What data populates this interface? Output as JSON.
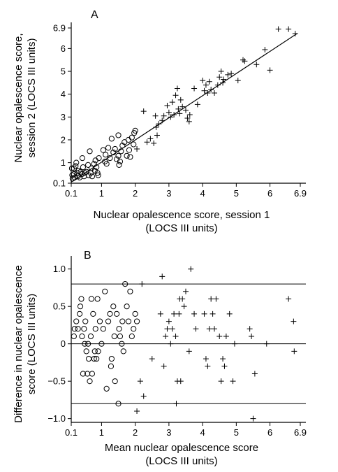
{
  "chart_data": [
    {
      "panel": "A",
      "type": "scatter",
      "xlabel_lines": [
        "Nuclear opalescence score, session 1",
        "(LOCS III units)"
      ],
      "ylabel_lines": [
        "Nuclear opalescence score,",
        "session 2 (LOCS III units)"
      ],
      "xlim": [
        0.1,
        6.9
      ],
      "ylim": [
        0.1,
        6.9
      ],
      "xticks": [
        0.1,
        1,
        2,
        3,
        4,
        5,
        6,
        6.9
      ],
      "yticks": [
        0.1,
        1,
        2,
        3,
        4,
        5,
        6,
        6.9
      ],
      "fit_line": {
        "x": [
          0.1,
          6.8
        ],
        "y": [
          0.15,
          6.65
        ]
      },
      "series": [
        {
          "marker": "circle",
          "points": [
            [
              0.12,
              0.75
            ],
            [
              0.13,
              0.45
            ],
            [
              0.14,
              0.3
            ],
            [
              0.18,
              0.75
            ],
            [
              0.18,
              0.5
            ],
            [
              0.2,
              0.35
            ],
            [
              0.23,
              0.85
            ],
            [
              0.25,
              1.0
            ],
            [
              0.28,
              0.55
            ],
            [
              0.3,
              0.4
            ],
            [
              0.32,
              0.65
            ],
            [
              0.35,
              0.35
            ],
            [
              0.38,
              0.6
            ],
            [
              0.42,
              0.5
            ],
            [
              0.43,
              1.2
            ],
            [
              0.45,
              0.8
            ],
            [
              0.48,
              0.4
            ],
            [
              0.5,
              0.55
            ],
            [
              0.55,
              0.6
            ],
            [
              0.6,
              0.9
            ],
            [
              0.62,
              0.45
            ],
            [
              0.65,
              1.5
            ],
            [
              0.68,
              0.55
            ],
            [
              0.7,
              0.75
            ],
            [
              0.72,
              0.4
            ],
            [
              0.78,
              0.95
            ],
            [
              0.8,
              0.65
            ],
            [
              0.82,
              1.1
            ],
            [
              0.85,
              0.8
            ],
            [
              0.88,
              0.55
            ],
            [
              0.9,
              0.45
            ],
            [
              0.92,
              1.2
            ],
            [
              1.05,
              1.55
            ],
            [
              1.1,
              1.05
            ],
            [
              1.12,
              1.35
            ],
            [
              1.15,
              0.95
            ],
            [
              1.2,
              1.65
            ],
            [
              1.25,
              1.2
            ],
            [
              1.3,
              2.05
            ],
            [
              1.35,
              1.45
            ],
            [
              1.4,
              1.6
            ],
            [
              1.45,
              1.15
            ],
            [
              1.5,
              1.3
            ],
            [
              1.5,
              2.2
            ],
            [
              1.52,
              0.9
            ],
            [
              1.55,
              1.05
            ],
            [
              1.58,
              1.5
            ],
            [
              1.62,
              1.75
            ],
            [
              1.68,
              1.9
            ],
            [
              1.75,
              1.3
            ],
            [
              1.8,
              2.0
            ],
            [
              1.82,
              1.55
            ],
            [
              1.85,
              1.25
            ],
            [
              1.9,
              2.1
            ],
            [
              1.95,
              1.8
            ],
            [
              1.97,
              2.3
            ],
            [
              2.0,
              2.4
            ]
          ]
        },
        {
          "marker": "plus",
          "points": [
            [
              2.05,
              1.6
            ],
            [
              2.25,
              3.25
            ],
            [
              2.35,
              1.9
            ],
            [
              2.45,
              2.05
            ],
            [
              2.55,
              1.85
            ],
            [
              2.6,
              3.05
            ],
            [
              2.62,
              2.55
            ],
            [
              2.65,
              2.2
            ],
            [
              2.7,
              2.7
            ],
            [
              2.8,
              2.85
            ],
            [
              2.85,
              3.05
            ],
            [
              2.95,
              3.5
            ],
            [
              3.0,
              3.2
            ],
            [
              3.05,
              3.0
            ],
            [
              3.1,
              3.65
            ],
            [
              3.15,
              3.1
            ],
            [
              3.2,
              3.95
            ],
            [
              3.25,
              4.25
            ],
            [
              3.28,
              3.35
            ],
            [
              3.32,
              3.15
            ],
            [
              3.35,
              3.75
            ],
            [
              3.4,
              3.45
            ],
            [
              3.5,
              3.3
            ],
            [
              3.55,
              2.95
            ],
            [
              3.6,
              2.8
            ],
            [
              3.62,
              3.1
            ],
            [
              3.75,
              4.25
            ],
            [
              3.85,
              3.55
            ],
            [
              4.0,
              4.6
            ],
            [
              4.05,
              4.15
            ],
            [
              4.1,
              4.4
            ],
            [
              4.15,
              4.05
            ],
            [
              4.2,
              4.55
            ],
            [
              4.25,
              4.2
            ],
            [
              4.35,
              4.05
            ],
            [
              4.45,
              4.4
            ],
            [
              4.5,
              4.75
            ],
            [
              4.55,
              5.0
            ],
            [
              4.6,
              4.5
            ],
            [
              4.62,
              4.65
            ],
            [
              4.75,
              4.85
            ],
            [
              4.85,
              4.9
            ],
            [
              5.05,
              4.6
            ],
            [
              5.2,
              5.5
            ],
            [
              5.25,
              5.45
            ],
            [
              5.6,
              5.3
            ],
            [
              5.85,
              5.95
            ],
            [
              6.0,
              5.05
            ],
            [
              6.25,
              6.85
            ],
            [
              6.55,
              6.85
            ],
            [
              6.75,
              6.65
            ]
          ]
        }
      ]
    },
    {
      "panel": "B",
      "type": "scatter",
      "xlabel_lines": [
        "Mean nuclear opalescence score",
        "(LOCS III units)"
      ],
      "ylabel_lines": [
        "Difference in nuclear opalescence",
        "score (LOCS III units)"
      ],
      "xlim": [
        0.1,
        6.9
      ],
      "ylim": [
        -1.05,
        1.1
      ],
      "xticks": [
        0.1,
        1,
        2,
        3,
        4,
        5,
        6,
        6.9
      ],
      "yticks": [
        -1.0,
        -0.5,
        0,
        0.5,
        1.0
      ],
      "ytick_labels": [
        "−1.0",
        "−0.5",
        "0",
        "0.5",
        "1.0"
      ],
      "reference_lines": [
        0.8,
        0,
        -0.8
      ],
      "series": [
        {
          "marker": "circle",
          "points": [
            [
              0.18,
              0.1
            ],
            [
              0.2,
              0.2
            ],
            [
              0.25,
              0.3
            ],
            [
              0.3,
              0.2
            ],
            [
              0.35,
              0.4
            ],
            [
              0.37,
              0.5
            ],
            [
              0.4,
              0.6
            ],
            [
              0.42,
              0.1
            ],
            [
              0.45,
              -0.4
            ],
            [
              0.48,
              0.2
            ],
            [
              0.5,
              0.0
            ],
            [
              0.52,
              0.3
            ],
            [
              0.55,
              -0.1
            ],
            [
              0.58,
              -0.4
            ],
            [
              0.6,
              0.0
            ],
            [
              0.62,
              -0.2
            ],
            [
              0.65,
              -0.5
            ],
            [
              0.68,
              0.1
            ],
            [
              0.7,
              0.6
            ],
            [
              0.72,
              -0.4
            ],
            [
              0.75,
              0.4
            ],
            [
              0.78,
              -0.2
            ],
            [
              0.8,
              -0.1
            ],
            [
              0.82,
              0.2
            ],
            [
              0.85,
              -0.2
            ],
            [
              0.88,
              0.6
            ],
            [
              0.9,
              -0.1
            ],
            [
              0.95,
              0.3
            ],
            [
              1.0,
              0.0
            ],
            [
              1.05,
              0.2
            ],
            [
              1.1,
              0.7
            ],
            [
              1.15,
              -0.6
            ],
            [
              1.2,
              0.3
            ],
            [
              1.25,
              0.4
            ],
            [
              1.28,
              -0.3
            ],
            [
              1.3,
              -0.2
            ],
            [
              1.35,
              0.5
            ],
            [
              1.38,
              0.1
            ],
            [
              1.4,
              -0.5
            ],
            [
              1.45,
              0.4
            ],
            [
              1.5,
              -0.8
            ],
            [
              1.52,
              0.2
            ],
            [
              1.55,
              0.1
            ],
            [
              1.6,
              0.0
            ],
            [
              1.62,
              0.3
            ],
            [
              1.65,
              -0.1
            ],
            [
              1.7,
              0.8
            ],
            [
              1.75,
              0.5
            ],
            [
              1.8,
              0.3
            ],
            [
              1.85,
              0.7
            ],
            [
              1.9,
              0.1
            ],
            [
              1.95,
              0.2
            ],
            [
              2.0,
              0.4
            ],
            [
              2.05,
              0.3
            ]
          ]
        },
        {
          "marker": "plus",
          "points": [
            [
              2.05,
              -0.9
            ],
            [
              2.15,
              -0.5
            ],
            [
              2.2,
              0.8
            ],
            [
              2.25,
              -0.7
            ],
            [
              2.5,
              -0.2
            ],
            [
              2.75,
              0.4
            ],
            [
              2.8,
              0.9
            ],
            [
              2.85,
              -0.3
            ],
            [
              2.9,
              0.1
            ],
            [
              2.95,
              0.2
            ],
            [
              3.0,
              0.3
            ],
            [
              3.05,
              0.0
            ],
            [
              3.1,
              0.2
            ],
            [
              3.15,
              0.4
            ],
            [
              3.2,
              0.1
            ],
            [
              3.22,
              -0.8
            ],
            [
              3.25,
              -0.5
            ],
            [
              3.3,
              0.4
            ],
            [
              3.32,
              0.6
            ],
            [
              3.35,
              -0.5
            ],
            [
              3.4,
              0.6
            ],
            [
              3.45,
              0.5
            ],
            [
              3.5,
              0.7
            ],
            [
              3.6,
              -0.1
            ],
            [
              3.65,
              1.0
            ],
            [
              3.75,
              0.4
            ],
            [
              3.8,
              0.2
            ],
            [
              4.05,
              0.4
            ],
            [
              4.1,
              -0.2
            ],
            [
              4.15,
              -0.3
            ],
            [
              4.2,
              0.2
            ],
            [
              4.25,
              0.6
            ],
            [
              4.3,
              0.4
            ],
            [
              4.35,
              0.2
            ],
            [
              4.4,
              0.6
            ],
            [
              4.5,
              0.1
            ],
            [
              4.55,
              -0.5
            ],
            [
              4.6,
              -0.2
            ],
            [
              4.65,
              -0.3
            ],
            [
              4.7,
              0.1
            ],
            [
              4.8,
              0.4
            ],
            [
              4.9,
              -0.5
            ],
            [
              4.95,
              0.0
            ],
            [
              5.4,
              0.2
            ],
            [
              5.45,
              0.1
            ],
            [
              5.5,
              -1.0
            ],
            [
              5.55,
              -0.4
            ],
            [
              5.9,
              0.0
            ],
            [
              6.55,
              0.6
            ],
            [
              6.7,
              0.3
            ],
            [
              6.72,
              -0.1
            ]
          ]
        }
      ]
    }
  ]
}
